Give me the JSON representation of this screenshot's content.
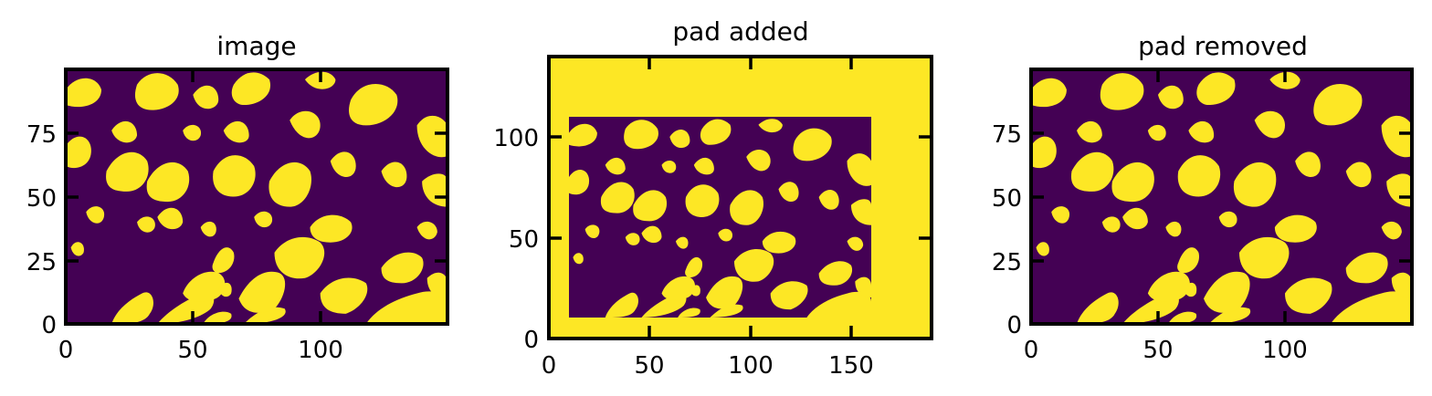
{
  "chart_data": [
    {
      "type": "heatmap",
      "title": "image",
      "xlabel": "",
      "ylabel": "",
      "xlim": [
        0,
        150
      ],
      "ylim": [
        0,
        100
      ],
      "x_ticks": [
        0,
        50,
        100
      ],
      "y_ticks": [
        0,
        25,
        50,
        75
      ],
      "grid": false,
      "legend": false,
      "data_rect": {
        "x": [
          0,
          150
        ],
        "y": [
          0,
          100
        ],
        "value": "binary pore pattern (yellow = 1, purple = 0)"
      },
      "pad_frame": null
    },
    {
      "type": "heatmap",
      "title": "pad added",
      "xlabel": "",
      "ylabel": "",
      "xlim": [
        0,
        190
      ],
      "ylim": [
        0,
        140
      ],
      "x_ticks": [
        0,
        50,
        100,
        150
      ],
      "y_ticks": [
        0,
        50,
        100
      ],
      "grid": false,
      "legend": false,
      "data_rect": {
        "x": [
          10,
          160
        ],
        "y": [
          10,
          110
        ],
        "value": "binary pore pattern (yellow = 1, purple = 0)"
      },
      "pad_frame": {
        "x": [
          0,
          190
        ],
        "y": [
          0,
          140
        ],
        "value": 1
      }
    },
    {
      "type": "heatmap",
      "title": "pad removed",
      "xlabel": "",
      "ylabel": "",
      "xlim": [
        0,
        150
      ],
      "ylim": [
        0,
        100
      ],
      "x_ticks": [
        0,
        50,
        100
      ],
      "y_ticks": [
        0,
        25,
        50,
        75
      ],
      "grid": false,
      "legend": false,
      "data_rect": {
        "x": [
          0,
          150
        ],
        "y": [
          0,
          100
        ],
        "value": "binary pore pattern (yellow = 1, purple = 0)"
      },
      "pad_frame": null
    }
  ],
  "colors": {
    "low": "#440154",
    "high": "#fde725",
    "axes": "#000000"
  }
}
